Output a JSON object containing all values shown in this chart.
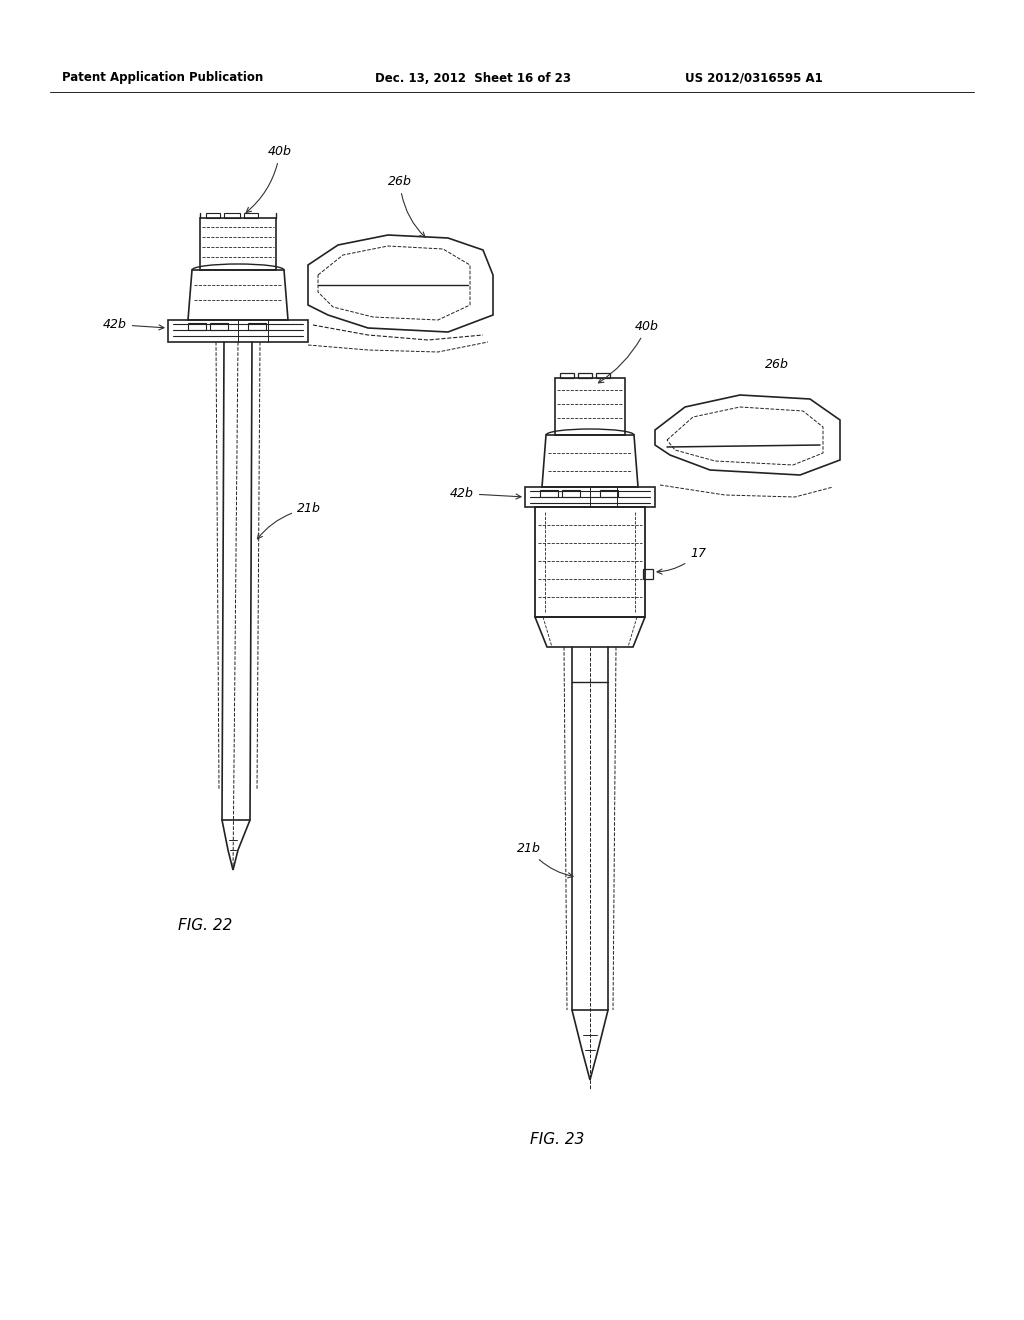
{
  "background_color": "#ffffff",
  "header_left": "Patent Application Publication",
  "header_middle": "Dec. 13, 2012  Sheet 16 of 23",
  "header_right": "US 2012/0316595 A1",
  "fig22_label": "FIG. 22",
  "fig23_label": "FIG. 23"
}
